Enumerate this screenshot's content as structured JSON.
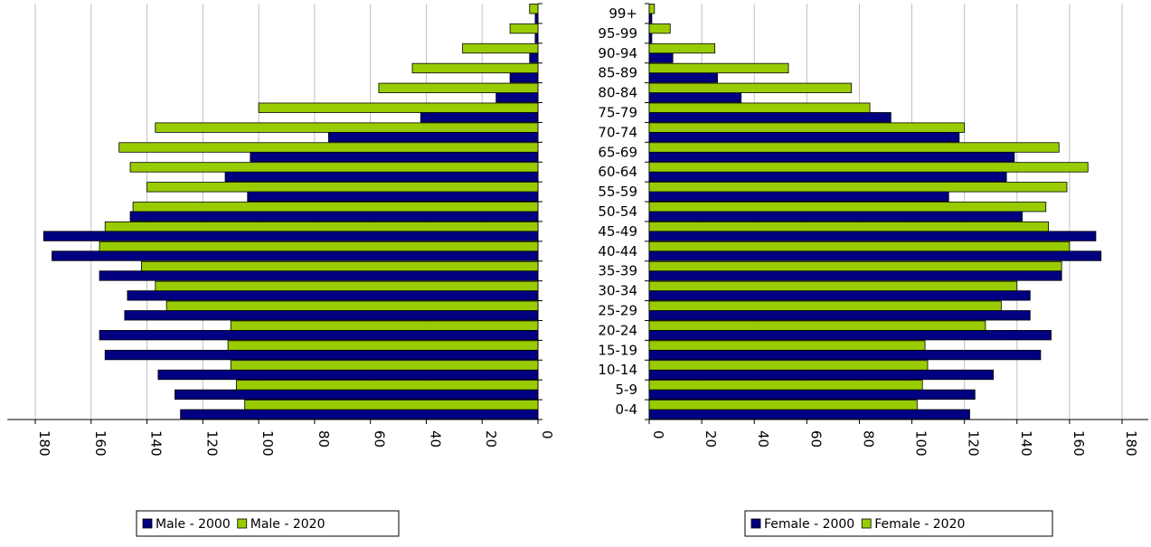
{
  "chart_data": [
    {
      "type": "bar",
      "orientation": "horizontal",
      "direction": "reversed",
      "title": "",
      "xlabel": "",
      "ylabel": "",
      "xlim": [
        0,
        190
      ],
      "x_ticks": [
        0,
        20,
        40,
        60,
        80,
        100,
        120,
        140,
        160,
        180
      ],
      "grid": true,
      "legend_position": "bottom",
      "categories": [
        "0-4",
        "5-9",
        "10-14",
        "15-19",
        "20-24",
        "25-29",
        "30-34",
        "35-39",
        "40-44",
        "45-49",
        "50-54",
        "55-59",
        "60-64",
        "65-69",
        "70-74",
        "75-79",
        "80-84",
        "85-89",
        "90-94",
        "95-99",
        "99+"
      ],
      "series": [
        {
          "name": "Male - 2000",
          "color": "#000080",
          "values": [
            128,
            130,
            136,
            155,
            157,
            148,
            147,
            157,
            174,
            177,
            146,
            104,
            112,
            103,
            75,
            42,
            15,
            10,
            3,
            1,
            1
          ]
        },
        {
          "name": "Male - 2020",
          "color": "#99cc00",
          "values": [
            105,
            108,
            110,
            111,
            110,
            133,
            137,
            142,
            157,
            155,
            145,
            140,
            146,
            150,
            137,
            100,
            57,
            45,
            27,
            10,
            3
          ]
        }
      ]
    },
    {
      "type": "bar",
      "orientation": "horizontal",
      "title": "",
      "xlabel": "",
      "ylabel": "",
      "xlim": [
        0,
        190
      ],
      "x_ticks": [
        0,
        20,
        40,
        60,
        80,
        100,
        120,
        140,
        160,
        180
      ],
      "grid": true,
      "legend_position": "bottom",
      "categories": [
        "0-4",
        "5-9",
        "10-14",
        "15-19",
        "20-24",
        "25-29",
        "30-34",
        "35-39",
        "40-44",
        "45-49",
        "50-54",
        "55-59",
        "60-64",
        "65-69",
        "70-74",
        "75-79",
        "80-84",
        "85-89",
        "90-94",
        "95-99",
        "99+"
      ],
      "series": [
        {
          "name": "Female - 2000",
          "color": "#000080",
          "values": [
            122,
            124,
            131,
            149,
            153,
            145,
            145,
            157,
            172,
            170,
            142,
            114,
            136,
            139,
            118,
            92,
            35,
            26,
            9,
            1,
            1
          ]
        },
        {
          "name": "Female - 2020",
          "color": "#99cc00",
          "values": [
            102,
            104,
            106,
            105,
            128,
            134,
            140,
            157,
            160,
            152,
            151,
            159,
            167,
            156,
            120,
            84,
            77,
            53,
            25,
            8,
            2
          ]
        }
      ]
    }
  ]
}
